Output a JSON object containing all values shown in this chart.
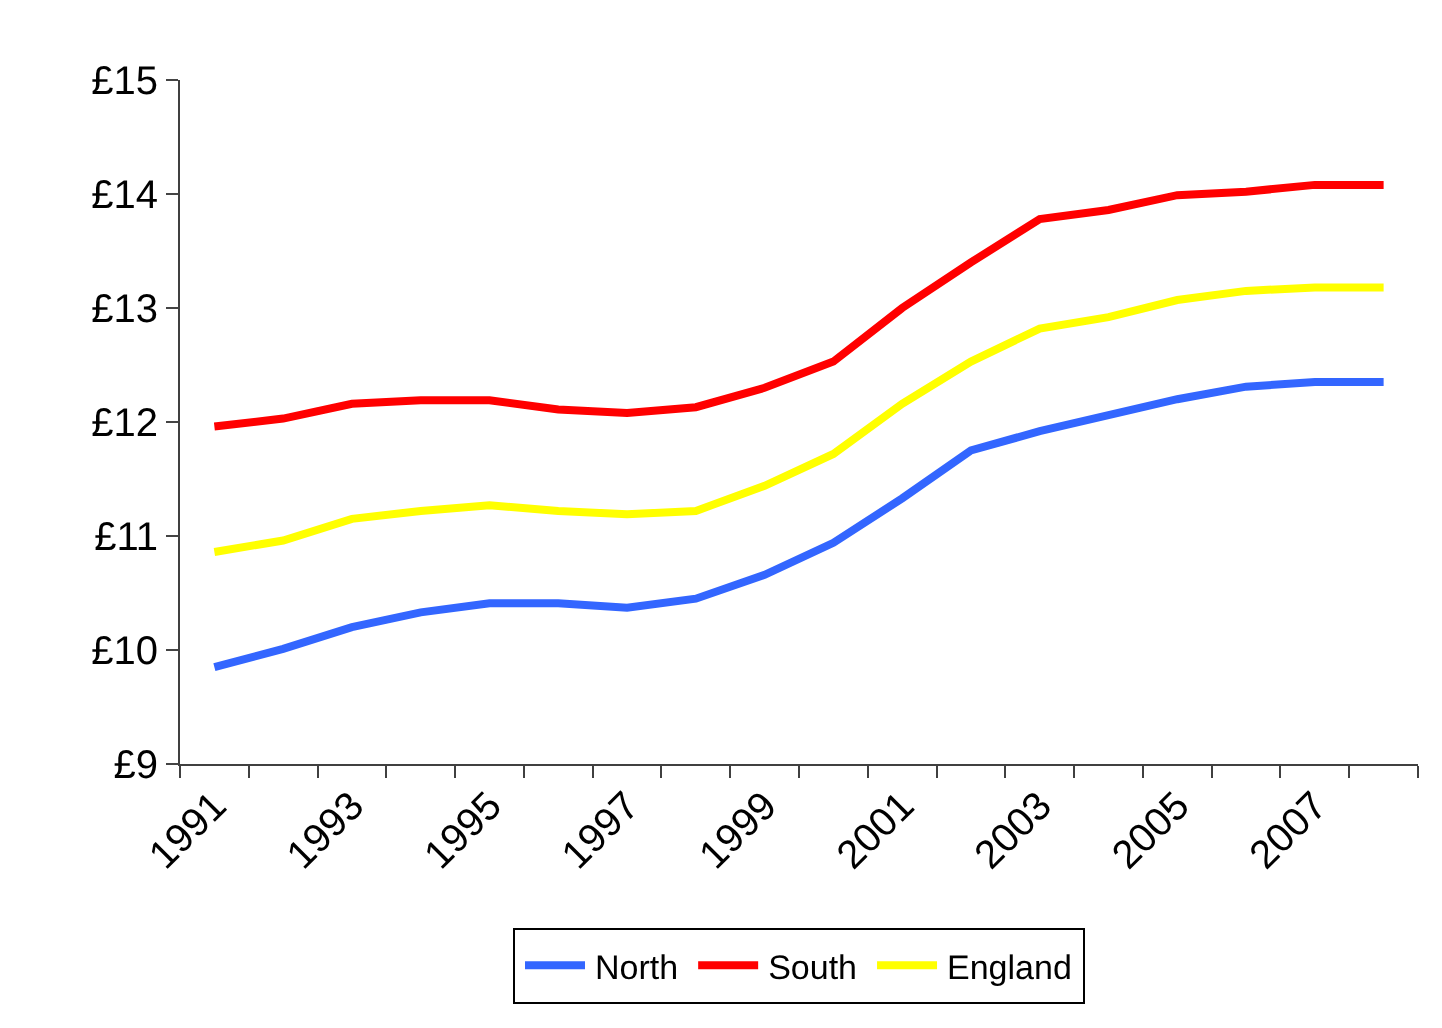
{
  "chart_data": {
    "type": "line",
    "categories": [
      "1991",
      null,
      "1993",
      null,
      "1995",
      null,
      "1997",
      null,
      "1999",
      null,
      "2001",
      null,
      "2003",
      null,
      "2005",
      null,
      "2007",
      null
    ],
    "series": [
      {
        "name": "North",
        "color": "#3366ff",
        "values": [
          9.85,
          10.01,
          10.2,
          10.33,
          10.41,
          10.41,
          10.37,
          10.45,
          10.66,
          10.94,
          11.33,
          11.75,
          11.92,
          12.06,
          12.2,
          12.31,
          12.35,
          12.35
        ]
      },
      {
        "name": "South",
        "color": "#ff0000",
        "values": [
          11.96,
          12.03,
          12.16,
          12.19,
          12.19,
          12.11,
          12.08,
          12.13,
          12.3,
          12.53,
          13.0,
          13.4,
          13.78,
          13.86,
          13.99,
          14.02,
          14.08,
          14.08
        ]
      },
      {
        "name": "England",
        "color": "#ffff00",
        "values": [
          10.86,
          10.96,
          11.15,
          11.22,
          11.27,
          11.22,
          11.19,
          11.22,
          11.44,
          11.72,
          12.16,
          12.53,
          12.82,
          12.92,
          13.07,
          13.15,
          13.18,
          13.18
        ]
      }
    ],
    "ylim": [
      9,
      15
    ],
    "yticks": [
      {
        "value": 9,
        "label": "£9"
      },
      {
        "value": 10,
        "label": "£10"
      },
      {
        "value": 11,
        "label": "£11"
      },
      {
        "value": 12,
        "label": "£12"
      },
      {
        "value": 13,
        "label": "£13"
      },
      {
        "value": 14,
        "label": "£14"
      },
      {
        "value": 15,
        "label": "£15"
      }
    ],
    "legend": "bottom",
    "marker": "none",
    "line_style": "solid"
  }
}
